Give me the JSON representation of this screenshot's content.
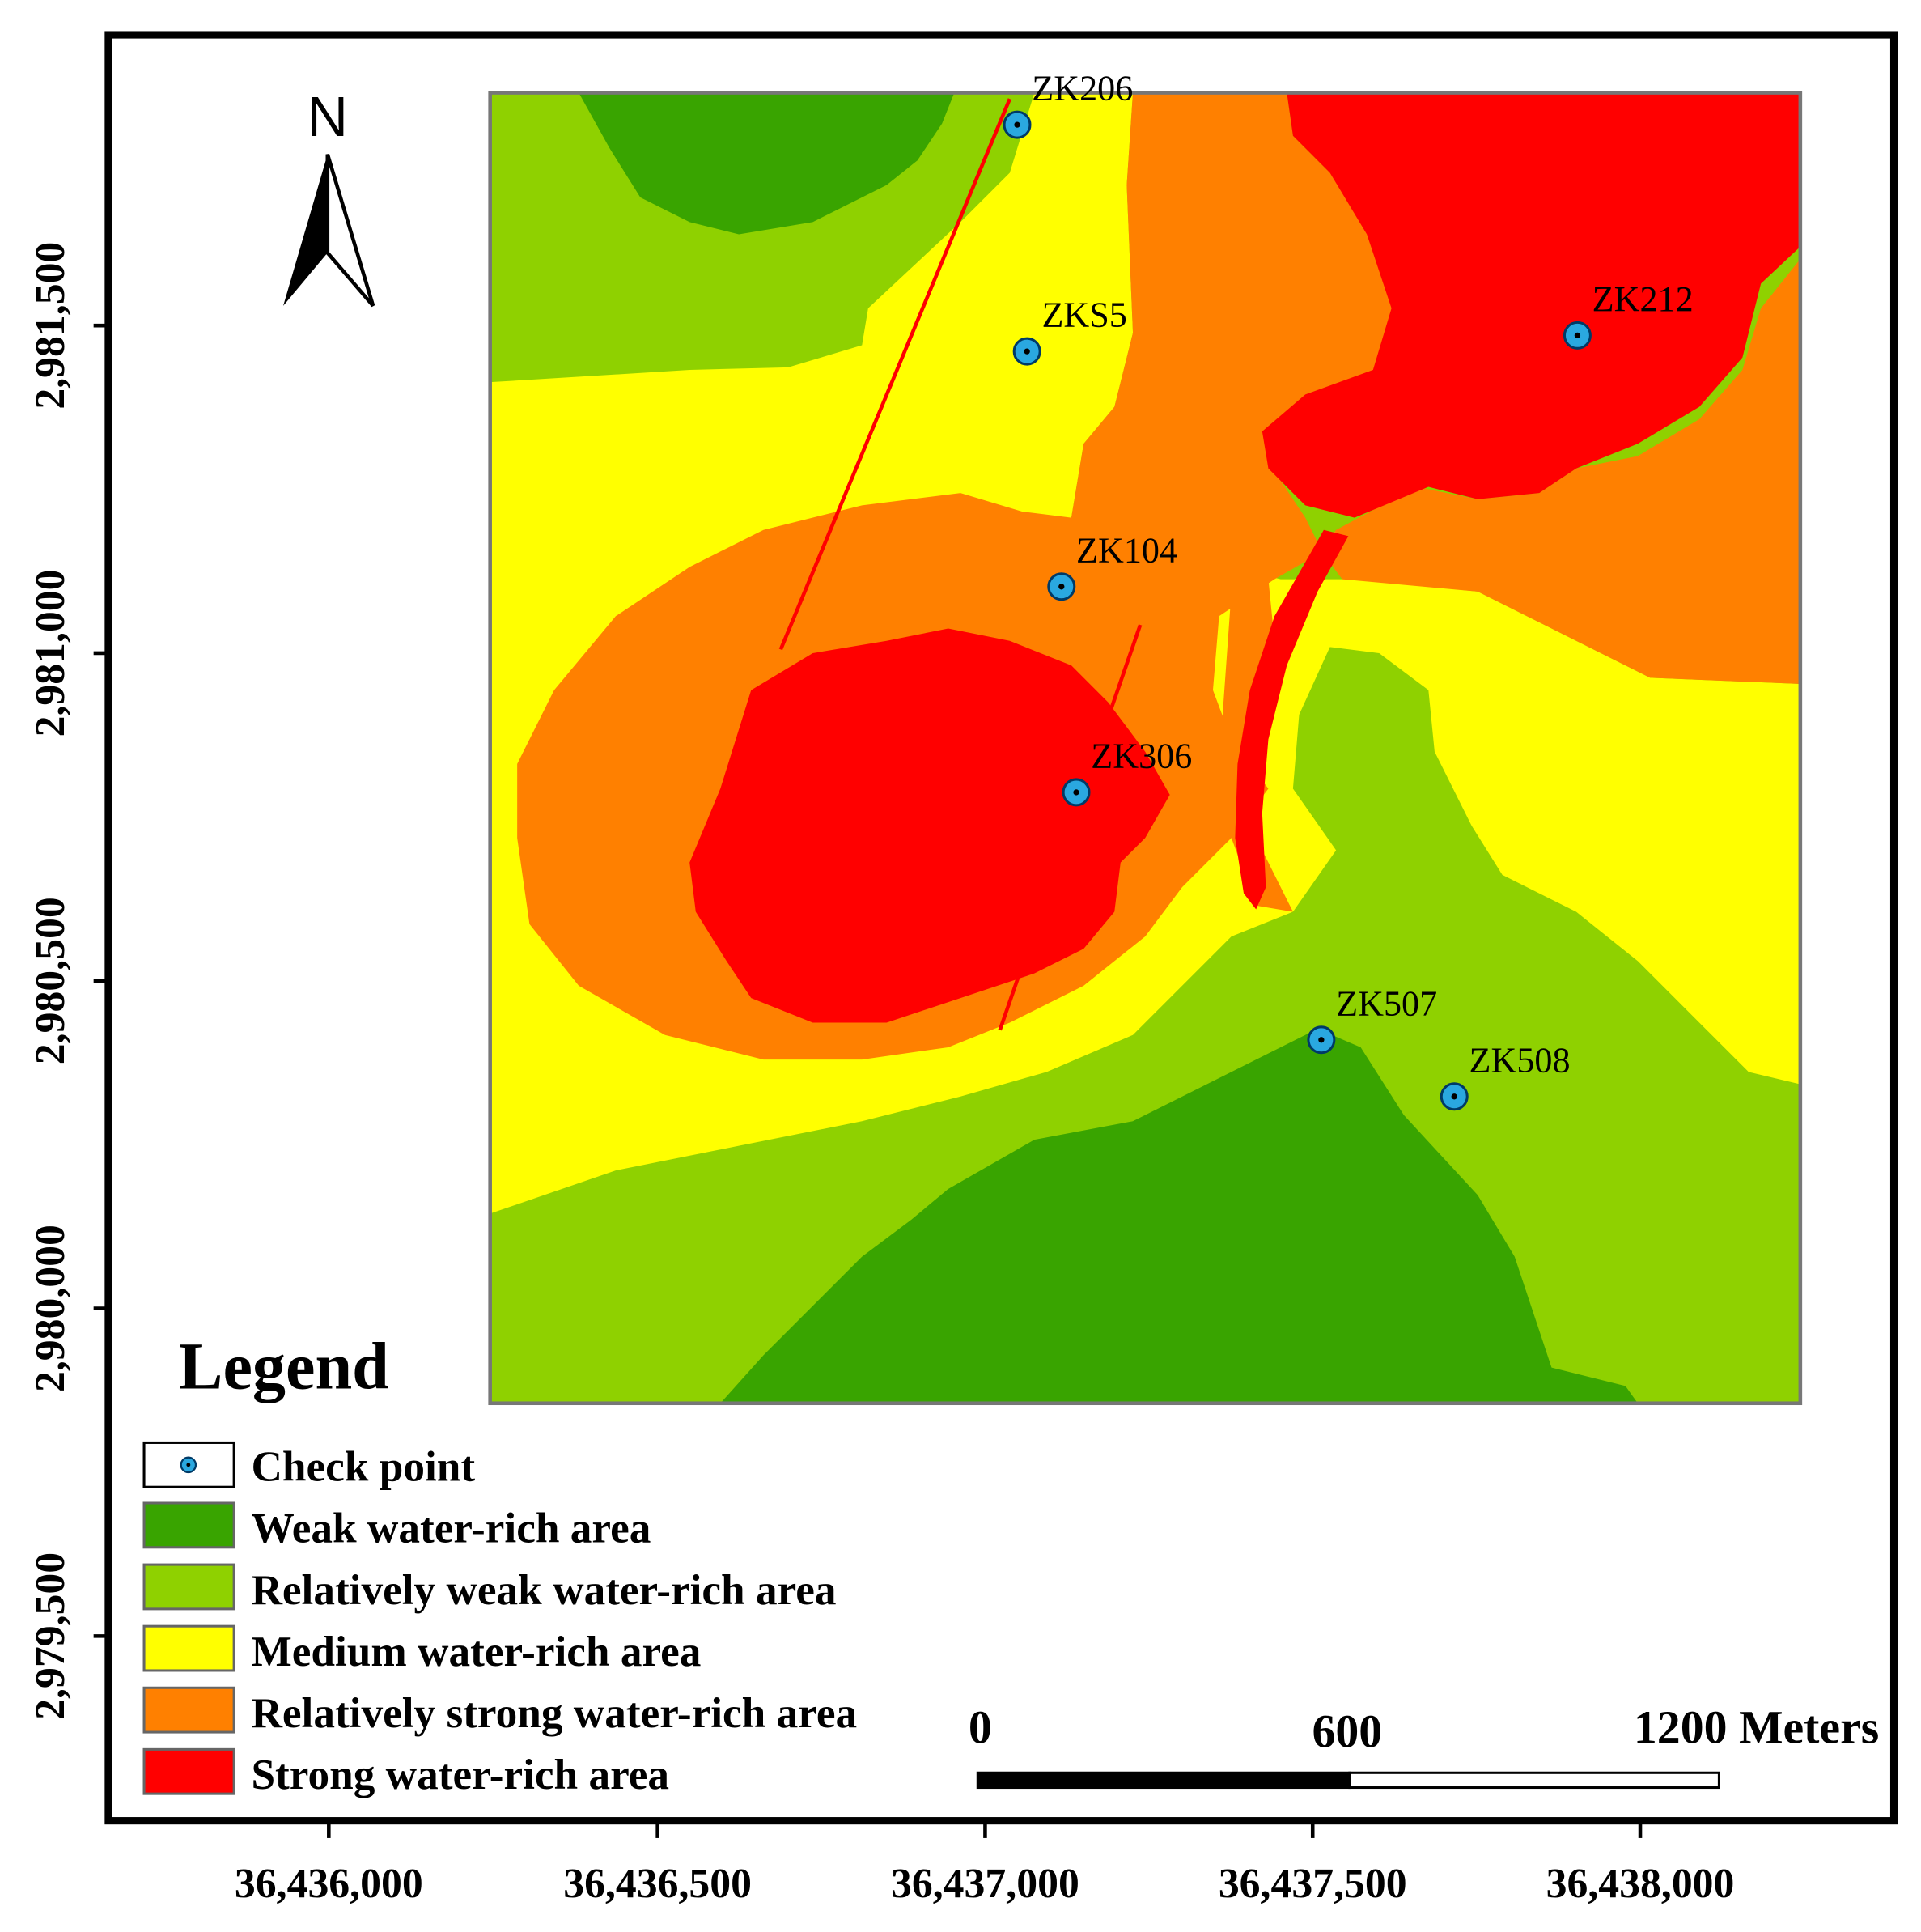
{
  "north_arrow": {
    "label": "N"
  },
  "legend": {
    "title": "Legend",
    "items": [
      {
        "label": "Check point",
        "kind": "point",
        "color": "#2aa8e0"
      },
      {
        "label": "Weak water-rich area",
        "kind": "swatch",
        "color": "#39a400"
      },
      {
        "label": "Relatively weak water-rich area",
        "kind": "swatch",
        "color": "#8fd100"
      },
      {
        "label": "Medium water-rich area",
        "kind": "swatch",
        "color": "#ffff00"
      },
      {
        "label": "Relatively strong water-rich area",
        "kind": "swatch",
        "color": "#ff8000"
      },
      {
        "label": "Strong water-rich area",
        "kind": "swatch",
        "color": "#ff0000"
      }
    ]
  },
  "scale_bar": {
    "labels": [
      "0",
      "600",
      "1200 Meters"
    ]
  },
  "axes": {
    "x_ticks": [
      "36,436,000",
      "36,436,500",
      "36,437,000",
      "36,437,500",
      "36,438,000"
    ],
    "y_ticks": [
      "2,981,500",
      "2,981,000",
      "2,980,500",
      "2,980,000",
      "2,979,500"
    ]
  },
  "check_points": [
    {
      "name": "ZK206"
    },
    {
      "name": "ZKS5"
    },
    {
      "name": "ZK212"
    },
    {
      "name": "ZK104"
    },
    {
      "name": "ZK306"
    },
    {
      "name": "ZK507"
    },
    {
      "name": "ZK508"
    }
  ]
}
